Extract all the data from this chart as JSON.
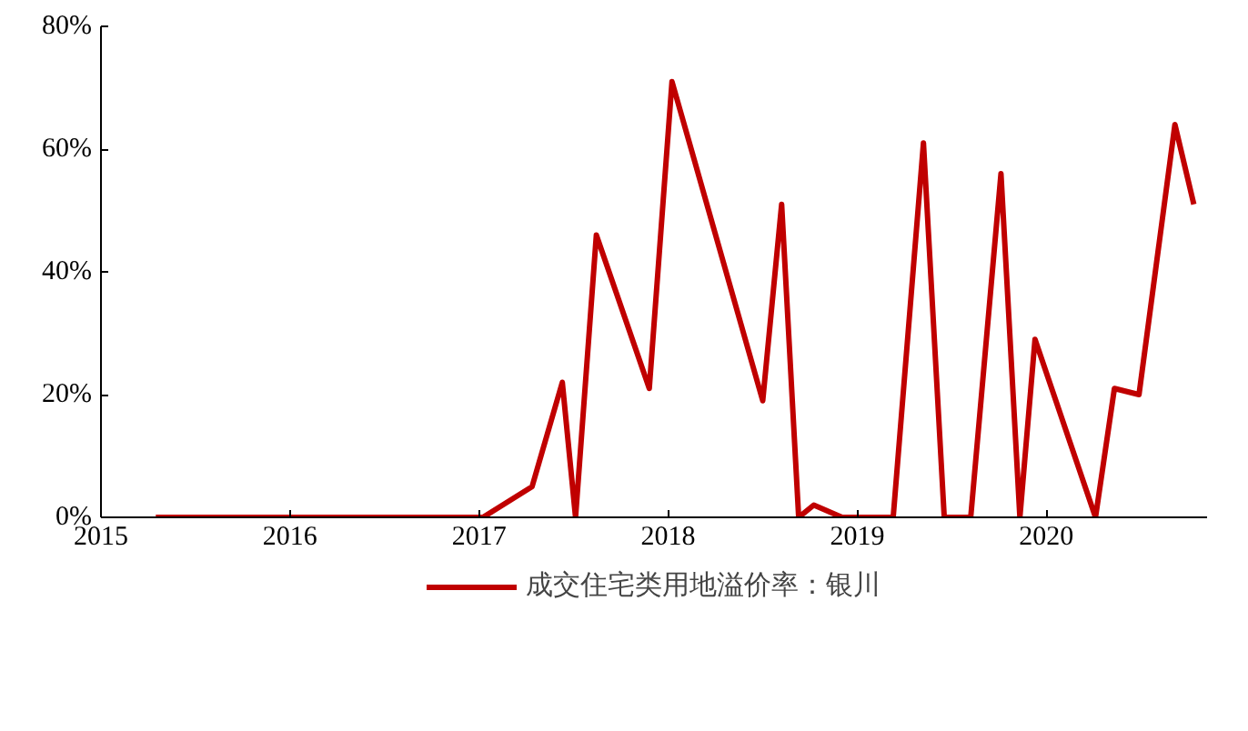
{
  "chart_data": {
    "type": "line",
    "x": [
      2015.29,
      2017.02,
      2017.28,
      2017.44,
      2017.51,
      2017.62,
      2017.9,
      2018.02,
      2018.5,
      2018.6,
      2018.69,
      2018.77,
      2018.92,
      2019.19,
      2019.35,
      2019.46,
      2019.6,
      2019.76,
      2019.86,
      2019.94,
      2020.26,
      2020.36,
      2020.49,
      2020.68,
      2020.78
    ],
    "series": [
      {
        "name": "成交住宅类用地溢价率：银川",
        "color": "#c00000",
        "values": [
          0,
          0,
          5,
          22,
          0,
          46,
          21,
          71,
          19,
          51,
          0,
          2,
          0,
          0,
          61,
          0,
          0,
          56,
          0,
          29,
          0,
          21,
          20,
          64,
          51
        ]
      }
    ],
    "xlim": [
      2015,
      2020.85
    ],
    "xticks": [
      2015,
      2016,
      2017,
      2018,
      2019,
      2020
    ],
    "ylim": [
      0,
      80
    ],
    "yticks": [
      {
        "value": 0,
        "label": "0%"
      },
      {
        "value": 20,
        "label": "20%"
      },
      {
        "value": 40,
        "label": "40%"
      },
      {
        "value": 60,
        "label": "60%"
      },
      {
        "value": 80,
        "label": "80%"
      }
    ],
    "grid": false,
    "legend": "bottom",
    "marker": "none",
    "line_style": "solid"
  }
}
